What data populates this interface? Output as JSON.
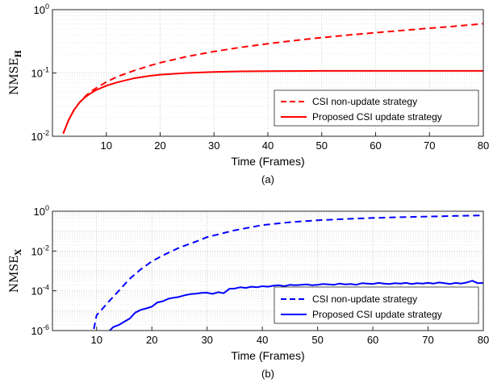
{
  "chart_data": [
    {
      "type": "line",
      "caption": "(a)",
      "xlabel": "Time (Frames)",
      "ylabel_base": "NMSE",
      "ylabel_sub": "H",
      "xlim": [
        0,
        80
      ],
      "xticks": [
        10,
        20,
        30,
        40,
        50,
        60,
        70,
        80
      ],
      "yscale": "log",
      "ylim": [
        0.01,
        1
      ],
      "yticks": [
        {
          "value": 0.01,
          "base": "10",
          "exp": "-2"
        },
        {
          "value": 0.1,
          "base": "10",
          "exp": "-1"
        },
        {
          "value": 1,
          "base": "10",
          "exp": "0"
        }
      ],
      "grid": true,
      "legend_position": "bottom-right",
      "series": [
        {
          "name": "CSI non-update strategy",
          "color": "#ff0000",
          "dash": "dashed",
          "x": [
            2,
            3,
            4,
            5,
            6,
            7,
            8,
            10,
            12,
            15,
            18,
            20,
            25,
            30,
            35,
            40,
            45,
            50,
            55,
            60,
            65,
            70,
            75,
            80
          ],
          "y": [
            0.011,
            0.018,
            0.026,
            0.034,
            0.042,
            0.05,
            0.057,
            0.072,
            0.087,
            0.108,
            0.13,
            0.145,
            0.182,
            0.218,
            0.254,
            0.29,
            0.326,
            0.362,
            0.398,
            0.434,
            0.47,
            0.51,
            0.55,
            0.6
          ]
        },
        {
          "name": "Proposed CSI update strategy",
          "color": "#ff0000",
          "dash": "solid",
          "x": [
            2,
            3,
            4,
            5,
            6,
            7,
            8,
            10,
            12,
            15,
            18,
            20,
            25,
            30,
            35,
            40,
            50,
            60,
            70,
            80
          ],
          "y": [
            0.011,
            0.018,
            0.026,
            0.034,
            0.041,
            0.047,
            0.053,
            0.063,
            0.071,
            0.082,
            0.09,
            0.094,
            0.1,
            0.104,
            0.106,
            0.107,
            0.108,
            0.108,
            0.108,
            0.108
          ]
        }
      ]
    },
    {
      "type": "line",
      "caption": "(b)",
      "xlabel": "Time (Frames)",
      "ylabel_base": "NMSE",
      "ylabel_sub": "X",
      "xlim": [
        2,
        80
      ],
      "xticks": [
        10,
        20,
        30,
        40,
        50,
        60,
        70,
        80
      ],
      "yscale": "log",
      "ylim": [
        1e-06,
        1
      ],
      "yticks": [
        {
          "value": 1e-06,
          "base": "10",
          "exp": "-6"
        },
        {
          "value": 0.0001,
          "base": "10",
          "exp": "-4"
        },
        {
          "value": 0.01,
          "base": "10",
          "exp": "-2"
        },
        {
          "value": 1,
          "base": "10",
          "exp": "0"
        }
      ],
      "grid": true,
      "legend_position": "bottom-right",
      "series": [
        {
          "name": "CSI non-update strategy",
          "color": "#0000ff",
          "dash": "dashed",
          "x": [
            9.5,
            10,
            11,
            12,
            13,
            14,
            15,
            16,
            18,
            20,
            22,
            25,
            28,
            30,
            35,
            40,
            45,
            50,
            55,
            60,
            65,
            70,
            75,
            80
          ],
          "y": [
            1.2e-06,
            6e-06,
            1.2e-05,
            2.5e-05,
            5e-05,
            0.0001,
            0.0002,
            0.0004,
            0.0012,
            0.003,
            0.006,
            0.015,
            0.03,
            0.05,
            0.11,
            0.2,
            0.28,
            0.35,
            0.41,
            0.46,
            0.5,
            0.54,
            0.58,
            0.62
          ]
        },
        {
          "name": "Proposed CSI update strategy",
          "color": "#0000ff",
          "dash": "solid",
          "x": [
            12,
            13,
            14,
            15,
            16,
            17,
            18,
            19,
            20,
            21,
            22,
            23,
            24,
            25,
            26,
            27,
            28,
            29,
            30,
            31,
            32,
            33,
            34,
            35,
            36,
            37,
            38,
            39,
            40,
            41,
            42,
            43,
            44,
            45,
            46,
            47,
            48,
            49,
            50,
            51,
            52,
            53,
            54,
            55,
            56,
            57,
            58,
            59,
            60,
            61,
            62,
            63,
            64,
            65,
            66,
            67,
            68,
            69,
            70,
            71,
            72,
            73,
            74,
            75,
            76,
            77,
            78,
            79,
            80
          ],
          "y": [
            8e-07,
            1.5e-06,
            1.9e-06,
            2.8e-06,
            4e-06,
            8e-06,
            1.1e-05,
            1.3e-05,
            1.6e-05,
            2.6e-05,
            3e-05,
            4e-05,
            4.5e-05,
            5e-05,
            6e-05,
            6.8e-05,
            7.2e-05,
            7.8e-05,
            8e-05,
            7e-05,
            8.5e-05,
            7.5e-05,
            0.000125,
            0.00013,
            0.00015,
            0.00014,
            0.00016,
            0.00015,
            0.00017,
            0.00016,
            0.00018,
            0.00019,
            0.00017,
            0.0002,
            0.00019,
            0.0002,
            0.00021,
            0.00019,
            0.0002,
            0.00022,
            0.00021,
            0.0002,
            0.00023,
            0.00021,
            0.00022,
            0.0002,
            0.00024,
            0.00023,
            0.00022,
            0.00025,
            0.00023,
            0.00022,
            0.00024,
            0.00023,
            0.00025,
            0.00022,
            0.00024,
            0.00023,
            0.00025,
            0.00023,
            0.00026,
            0.00024,
            0.00022,
            0.00025,
            0.00023,
            0.00026,
            0.00032,
            0.00024,
            0.00025
          ]
        }
      ]
    }
  ]
}
